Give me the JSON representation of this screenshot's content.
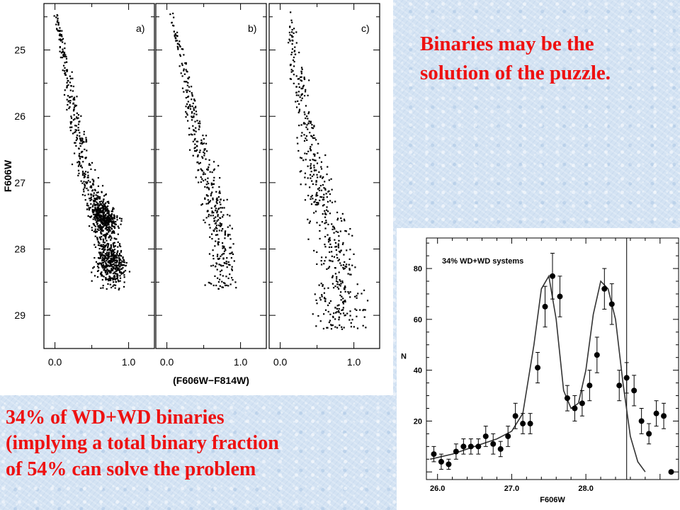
{
  "callouts": {
    "top": "Binaries may be the solution of the puzzle.",
    "bottom_lines": [
      "34% of WD+WD binaries",
      "(implying a total binary fraction",
      "of 54% can solve the problem"
    ]
  },
  "colors": {
    "callout_text": "#ee1111",
    "background": "#d4e3f3",
    "plot_ink": "#000000"
  },
  "chart_data": [
    {
      "type": "scatter",
      "panels": [
        "a)",
        "b)",
        "c)"
      ],
      "ylabel": "F606W",
      "xlabel": "(F606W−F814W)",
      "xlim": [
        -0.15,
        1.35
      ],
      "ylim": [
        29.5,
        24.3
      ],
      "xticks": [
        "0.0",
        "1.0"
      ],
      "yticks": [
        "25",
        "26",
        "27",
        "28",
        "29"
      ],
      "description_of_series": [
        {
          "panel": "a)",
          "ridge": [
            [
              0.0,
              24.4
            ],
            [
              0.1,
              25.0
            ],
            [
              0.25,
              26.0
            ],
            [
              0.45,
              27.0
            ],
            [
              0.65,
              27.5
            ],
            [
              0.75,
              28.2
            ]
          ],
          "points": 1200
        },
        {
          "panel": "b)",
          "ridge": [
            [
              0.05,
              24.4
            ],
            [
              0.25,
              25.5
            ],
            [
              0.45,
              26.5
            ],
            [
              0.65,
              27.4
            ],
            [
              0.75,
              28.0
            ]
          ],
          "points": 430
        },
        {
          "panel": "c)",
          "ridge": [
            [
              0.1,
              24.4
            ],
            [
              0.25,
              25.5
            ],
            [
              0.45,
              26.8
            ],
            [
              0.65,
              27.6
            ],
            [
              0.8,
              28.3
            ]
          ],
          "points": 520
        }
      ]
    },
    {
      "type": "line",
      "title": "34% WD+WD systems",
      "xlabel": "F606W",
      "ylabel": "N",
      "xlim": [
        25.85,
        29.25
      ],
      "ylim": [
        -3,
        92
      ],
      "xticks": [
        "26.0",
        "27.0",
        "28.0"
      ],
      "yticks": [
        "20",
        "40",
        "60",
        "80"
      ],
      "vline_x": 28.55,
      "observed": {
        "x": [
          25.95,
          26.05,
          26.15,
          26.25,
          26.35,
          26.45,
          26.55,
          26.65,
          26.75,
          26.85,
          26.95,
          27.05,
          27.15,
          27.25,
          27.35,
          27.45,
          27.55,
          27.65,
          27.75,
          27.85,
          27.95,
          28.05,
          28.15,
          28.25,
          28.35,
          28.45,
          28.55,
          28.65,
          28.75,
          28.85,
          28.95,
          29.05,
          29.15
        ],
        "y": [
          7,
          4,
          3,
          8,
          10,
          10,
          10,
          14,
          11,
          9,
          14,
          22,
          19,
          19,
          41,
          65,
          77,
          69,
          29,
          25,
          27,
          34,
          46,
          72,
          66,
          34,
          37,
          32,
          20,
          15,
          23,
          22,
          0
        ],
        "err": [
          3,
          3,
          2,
          3,
          3,
          3,
          3,
          4,
          4,
          3,
          4,
          5,
          4,
          4,
          6,
          8,
          9,
          8,
          5,
          5,
          5,
          6,
          7,
          8,
          8,
          6,
          6,
          6,
          5,
          4,
          5,
          5,
          0
        ]
      },
      "model_curve": {
        "x": [
          25.9,
          26.2,
          26.5,
          26.8,
          27.0,
          27.15,
          27.3,
          27.4,
          27.5,
          27.6,
          27.7,
          27.8,
          27.9,
          28.0,
          28.1,
          28.2,
          28.3,
          28.4,
          28.5,
          28.6,
          28.7,
          28.8
        ],
        "y": [
          5,
          7,
          10,
          13,
          16,
          23,
          50,
          72,
          77,
          60,
          32,
          25,
          27,
          40,
          62,
          75,
          72,
          60,
          35,
          14,
          4,
          0
        ]
      }
    }
  ]
}
